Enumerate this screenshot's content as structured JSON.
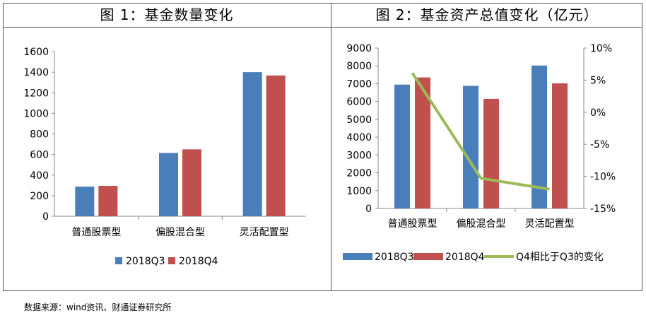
{
  "source": "数据来源：wind资讯、财通证券研究所",
  "colors": {
    "q3": "#4a7ebb",
    "q4": "#c0504d",
    "line": "#9bbb59",
    "axis": "#888888"
  },
  "chart_data": [
    {
      "type": "bar",
      "title": "图 1：基金数量变化",
      "categories": [
        "普通股票型",
        "偏股混合型",
        "灵活配置型"
      ],
      "series": [
        {
          "name": "2018Q3",
          "values": [
            288,
            615,
            1400
          ]
        },
        {
          "name": "2018Q4",
          "values": [
            295,
            650,
            1368
          ]
        }
      ],
      "ylim": [
        0,
        1600
      ],
      "yticks": [
        "0",
        "200",
        "400",
        "600",
        "800",
        "1000",
        "1200",
        "1400",
        "1600"
      ],
      "legend": "bottom",
      "grid": false
    },
    {
      "type": "bar",
      "title": "图 2：基金资产总值变化（亿元）",
      "categories": [
        "普通股票型",
        "偏股混合型",
        "灵活配置型"
      ],
      "series": [
        {
          "name": "2018Q3",
          "values": [
            6950,
            6880,
            8020
          ]
        },
        {
          "name": "2018Q4",
          "values": [
            7350,
            6150,
            7020
          ]
        },
        {
          "name": "Q4相比于Q3的变化",
          "type": "line",
          "axis": "right",
          "values": [
            6.1,
            -10.3,
            -12.0
          ]
        }
      ],
      "ylim": [
        0,
        9000
      ],
      "yticks": [
        "0",
        "1000",
        "2000",
        "3000",
        "4000",
        "5000",
        "6000",
        "7000",
        "8000",
        "9000"
      ],
      "y2lim": [
        -15,
        10
      ],
      "y2ticks": [
        "-15%",
        "-10%",
        "-5%",
        "0%",
        "5%",
        "10%"
      ],
      "legend": "bottom",
      "grid": false
    }
  ]
}
